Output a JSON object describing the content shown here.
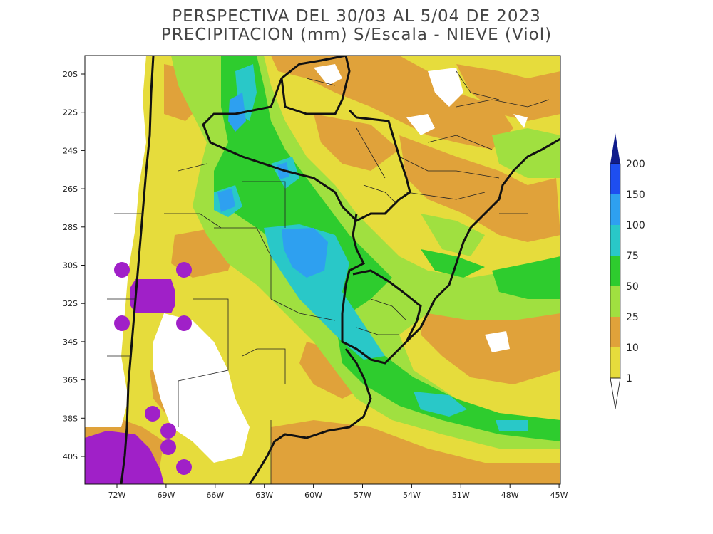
{
  "title": {
    "line1": "PERSPECTIVA DEL 30/03 AL 5/04 DE 2023",
    "line2": "PRECIPITACION (mm) S/Escala - NIEVE (Viol)"
  },
  "axes": {
    "lat_labels": [
      "20S",
      "22S",
      "24S",
      "26S",
      "28S",
      "30S",
      "32S",
      "34S",
      "36S",
      "38S",
      "40S"
    ],
    "lon_labels": [
      "72W",
      "69W",
      "66W",
      "63W",
      "60W",
      "57W",
      "54W",
      "51W",
      "48W",
      "45W"
    ]
  },
  "colorbar": {
    "levels": [
      "200",
      "150",
      "100",
      "75",
      "50",
      "25",
      "10",
      "1"
    ],
    "colors": {
      "c1": "#e6dc3c",
      "c10": "#e0a23a",
      "c25": "#a0e040",
      "c50": "#2ecc2e",
      "c75": "#29c8c8",
      "c100": "#2ea0f0",
      "c150": "#1e4ef0",
      "c200": "#101c8c",
      "snow": "#a020c8",
      "dry": "#ffffff"
    }
  }
}
